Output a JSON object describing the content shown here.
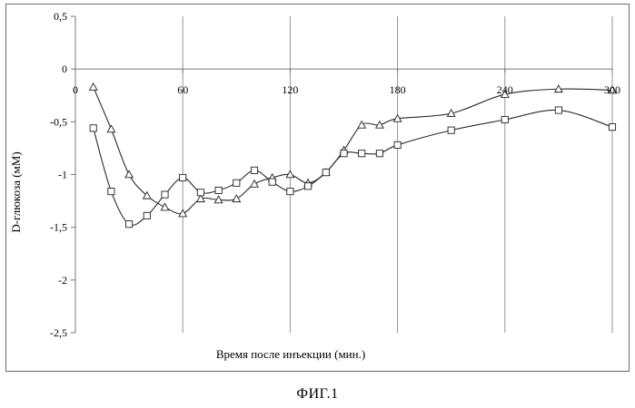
{
  "caption": "ФИГ.1",
  "chart_data": {
    "type": "line",
    "title": "",
    "xlabel": "Время после инъекции (мин.)",
    "ylabel": "D-глюкоза (мМ)",
    "xlim": [
      0,
      300
    ],
    "ylim": [
      -2.5,
      0.5
    ],
    "x_ticks": [
      0,
      60,
      120,
      180,
      240,
      300
    ],
    "x_tick_labels": [
      "0",
      "60",
      "120",
      "180",
      "240",
      "300"
    ],
    "y_ticks": [
      0.5,
      0,
      -0.5,
      -1,
      -1.5,
      -2,
      -2.5
    ],
    "y_tick_labels": [
      "0,5",
      "0",
      "-0,5",
      "-1",
      "-1,5",
      "-2",
      "-2,5"
    ],
    "grid": "vertical",
    "legend": "none",
    "series": [
      {
        "marker": "triangle",
        "x": [
          10,
          20,
          30,
          40,
          50,
          60,
          70,
          80,
          90,
          100,
          110,
          120,
          130,
          140,
          150,
          160,
          170,
          180,
          210,
          240,
          270,
          300
        ],
        "y": [
          -0.17,
          -0.57,
          -1.0,
          -1.2,
          -1.31,
          -1.37,
          -1.23,
          -1.24,
          -1.23,
          -1.09,
          -1.03,
          -1.0,
          -1.08,
          -0.98,
          -0.77,
          -0.53,
          -0.53,
          -0.47,
          -0.42,
          -0.24,
          -0.19,
          -0.2
        ]
      },
      {
        "marker": "square",
        "x": [
          10,
          20,
          30,
          40,
          50,
          60,
          70,
          80,
          90,
          100,
          110,
          120,
          130,
          140,
          150,
          160,
          170,
          180,
          210,
          240,
          270,
          300
        ],
        "y": [
          -0.56,
          -1.16,
          -1.47,
          -1.39,
          -1.19,
          -1.03,
          -1.17,
          -1.15,
          -1.08,
          -0.96,
          -1.07,
          -1.16,
          -1.11,
          -0.98,
          -0.8,
          -0.8,
          -0.8,
          -0.72,
          -0.58,
          -0.48,
          -0.39,
          -0.55
        ]
      }
    ]
  }
}
